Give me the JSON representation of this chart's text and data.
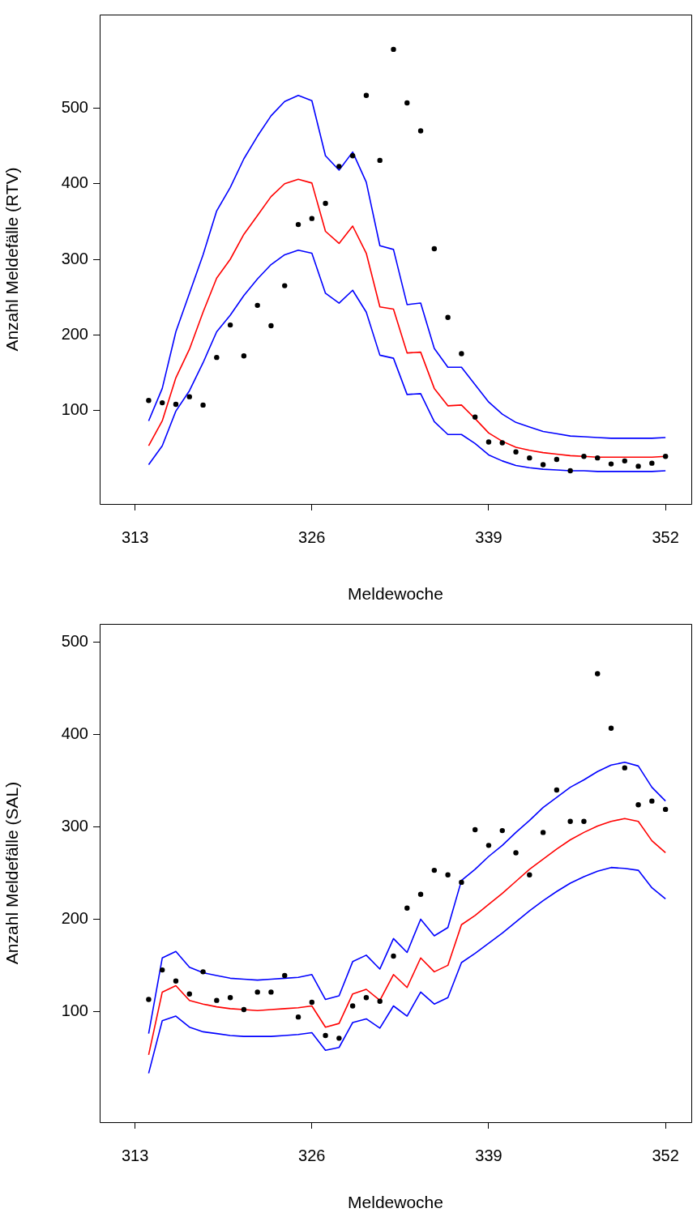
{
  "chart_data": [
    {
      "type": "line",
      "xlabel": "Meldewoche",
      "ylabel": "Anzahl Meldefälle (RTV)",
      "x": [
        314,
        315,
        316,
        317,
        318,
        319,
        320,
        321,
        322,
        323,
        324,
        325,
        326,
        327,
        328,
        329,
        330,
        331,
        332,
        333,
        334,
        335,
        336,
        337,
        338,
        339,
        340,
        341,
        342,
        343,
        344,
        345,
        346,
        347,
        348,
        349,
        350,
        351,
        352
      ],
      "xlim": [
        310.4,
        353.9
      ],
      "xticks": [
        313,
        326,
        339,
        352
      ],
      "ylim": [
        -24,
        624
      ],
      "yticks": [
        100,
        200,
        300,
        400,
        500
      ],
      "grid": false,
      "legend": false,
      "line_style": "solid",
      "series": [
        {
          "type": "scatter",
          "marker": "circle",
          "color": "#000000",
          "values": [
            113,
            110,
            108,
            118,
            107,
            170,
            213,
            172,
            239,
            212,
            265,
            346,
            354,
            374,
            423,
            437,
            517,
            431,
            578,
            507,
            470,
            314,
            223,
            175,
            91,
            58,
            57,
            45,
            37,
            28,
            35,
            20,
            39,
            37,
            29,
            33,
            26,
            30,
            39
          ]
        },
        {
          "type": "line",
          "color": "#0000ff",
          "values": [
            86,
            129,
            204,
            255,
            306,
            364,
            395,
            433,
            463,
            490,
            509,
            517,
            510,
            437,
            418,
            442,
            402,
            318,
            313,
            240,
            242,
            182,
            157,
            157,
            134,
            111,
            95,
            84,
            78,
            72,
            69,
            66,
            65,
            64,
            63,
            63,
            63,
            63,
            64
          ]
        },
        {
          "type": "line",
          "color": "#ff0000",
          "values": [
            53,
            86,
            143,
            181,
            230,
            275,
            300,
            333,
            358,
            383,
            400,
            406,
            401,
            337,
            321,
            344,
            308,
            237,
            234,
            176,
            177,
            129,
            106,
            107,
            89,
            70,
            59,
            51,
            47,
            44,
            42,
            40,
            39,
            38,
            38,
            38,
            38,
            38,
            39
          ]
        },
        {
          "type": "line",
          "color": "#0000ff",
          "values": [
            28,
            53,
            99,
            126,
            163,
            204,
            226,
            252,
            274,
            293,
            306,
            312,
            308,
            255,
            242,
            259,
            230,
            173,
            169,
            121,
            122,
            85,
            68,
            68,
            56,
            41,
            33,
            27,
            24,
            22,
            21,
            20,
            20,
            19,
            19,
            19,
            19,
            19,
            20
          ]
        }
      ]
    },
    {
      "type": "line",
      "xlabel": "Meldewoche",
      "ylabel": "Anzahl Meldefälle (SAL)",
      "x": [
        314,
        315,
        316,
        317,
        318,
        319,
        320,
        321,
        322,
        323,
        324,
        325,
        326,
        327,
        328,
        329,
        330,
        331,
        332,
        333,
        334,
        335,
        336,
        337,
        338,
        339,
        340,
        341,
        342,
        343,
        344,
        345,
        346,
        347,
        348,
        349,
        350,
        351,
        352
      ],
      "xlim": [
        310.4,
        353.9
      ],
      "xticks": [
        313,
        326,
        339,
        352
      ],
      "ylim": [
        -20,
        520
      ],
      "yticks": [
        100,
        200,
        300,
        400,
        500
      ],
      "grid": false,
      "legend": false,
      "line_style": "solid",
      "series": [
        {
          "type": "scatter",
          "marker": "circle",
          "color": "#000000",
          "values": [
            113,
            145,
            133,
            119,
            143,
            112,
            115,
            102,
            121,
            121,
            139,
            94,
            110,
            74,
            71,
            106,
            115,
            111,
            160,
            212,
            227,
            253,
            248,
            240,
            297,
            280,
            296,
            272,
            248,
            294,
            340,
            306,
            306,
            466,
            407,
            364,
            324,
            328,
            319
          ]
        },
        {
          "type": "line",
          "color": "#0000ff",
          "values": [
            76,
            158,
            165,
            148,
            142,
            139,
            136,
            135,
            134,
            135,
            136,
            137,
            140,
            113,
            117,
            154,
            161,
            146,
            179,
            164,
            200,
            182,
            191,
            242,
            254,
            268,
            280,
            294,
            307,
            321,
            332,
            343,
            351,
            360,
            367,
            370,
            366,
            343,
            328
          ]
        },
        {
          "type": "line",
          "color": "#ff0000",
          "values": [
            53,
            121,
            128,
            112,
            108,
            105,
            103,
            102,
            101,
            102,
            103,
            104,
            106,
            83,
            87,
            119,
            124,
            112,
            140,
            126,
            158,
            143,
            150,
            194,
            204,
            216,
            228,
            241,
            254,
            265,
            276,
            286,
            294,
            301,
            306,
            309,
            306,
            285,
            272
          ]
        },
        {
          "type": "line",
          "color": "#0000ff",
          "values": [
            33,
            90,
            95,
            83,
            78,
            76,
            74,
            73,
            73,
            73,
            74,
            75,
            77,
            58,
            61,
            88,
            92,
            82,
            106,
            95,
            121,
            108,
            115,
            153,
            163,
            174,
            185,
            197,
            209,
            220,
            230,
            239,
            246,
            252,
            256,
            255,
            253,
            234,
            222
          ]
        }
      ]
    }
  ]
}
